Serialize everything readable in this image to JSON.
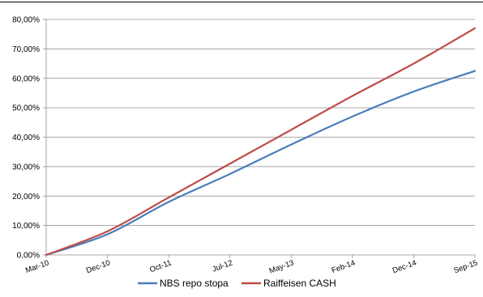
{
  "chart_data": {
    "type": "line",
    "x": [
      "Mar-10",
      "Dec-10",
      "Oct-11",
      "Jul-12",
      "May-13",
      "Feb-14",
      "Dec-14",
      "Sep-15"
    ],
    "ylim": [
      0,
      80
    ],
    "y_tick_labels": [
      "0,00%",
      "10,00%",
      "20,00%",
      "30,00%",
      "40,00%",
      "50,00%",
      "60,00%",
      "70,00%",
      "80,00%"
    ],
    "grid": true,
    "legend_position": "bottom",
    "series": [
      {
        "name": "NBS repo stopa",
        "color": "#4a7ebb",
        "values": [
          0,
          7,
          18,
          27.5,
          37.5,
          47,
          55.5,
          62.5
        ]
      },
      {
        "name": "Raiffeisen CASH",
        "color": "#be4b48",
        "values": [
          0,
          8,
          19.5,
          31,
          42.5,
          54,
          65,
          77
        ]
      }
    ]
  }
}
